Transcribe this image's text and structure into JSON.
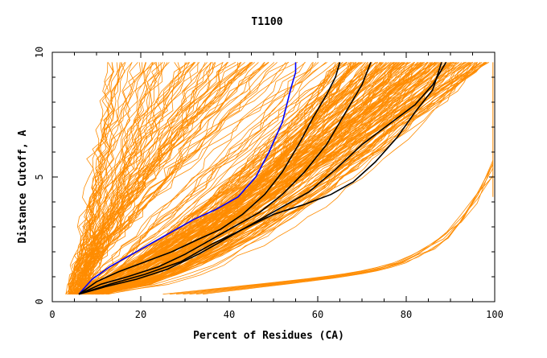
{
  "chart_data": {
    "type": "line",
    "title": "T1100",
    "xlabel": "Percent of Residues (CA)",
    "ylabel": "Distance Cutoff, A",
    "xlim": [
      0,
      100
    ],
    "ylim": [
      0,
      10
    ],
    "x_ticks": [
      0,
      20,
      40,
      60,
      80,
      100
    ],
    "y_ticks": [
      0,
      5,
      10
    ],
    "x_tick_labels": [
      "0",
      "20",
      "40",
      "60",
      "80",
      "100"
    ],
    "y_tick_labels": [
      "0",
      "5",
      "10"
    ],
    "grid": false,
    "legend": "none",
    "colors": {
      "orange": "#ff8c00",
      "blue": "#0000ff",
      "black": "#000000"
    },
    "series": [
      {
        "color": "blue",
        "points": [
          [
            6,
            0.3
          ],
          [
            9,
            0.9
          ],
          [
            13,
            1.4
          ],
          [
            18,
            1.9
          ],
          [
            23,
            2.4
          ],
          [
            28,
            2.9
          ],
          [
            32,
            3.3
          ],
          [
            37,
            3.7
          ],
          [
            42,
            4.2
          ],
          [
            46,
            5.0
          ],
          [
            49,
            6.0
          ],
          [
            52,
            7.2
          ],
          [
            54,
            8.6
          ],
          [
            55,
            9.2
          ],
          [
            55,
            9.6
          ]
        ]
      },
      {
        "color": "black",
        "points": [
          [
            6,
            0.3
          ],
          [
            10,
            0.8
          ],
          [
            15,
            1.2
          ],
          [
            21,
            1.6
          ],
          [
            27,
            2.0
          ],
          [
            33,
            2.5
          ],
          [
            38,
            2.9
          ],
          [
            43,
            3.5
          ],
          [
            48,
            4.3
          ],
          [
            52,
            5.2
          ],
          [
            56,
            6.4
          ],
          [
            59,
            7.4
          ],
          [
            62,
            8.3
          ],
          [
            64,
            9.0
          ],
          [
            65,
            9.6
          ]
        ]
      },
      {
        "color": "black",
        "points": [
          [
            6,
            0.3
          ],
          [
            11,
            0.7
          ],
          [
            17,
            1.0
          ],
          [
            24,
            1.4
          ],
          [
            30,
            1.9
          ],
          [
            36,
            2.5
          ],
          [
            41,
            3.0
          ],
          [
            47,
            3.6
          ],
          [
            52,
            4.3
          ],
          [
            57,
            5.2
          ],
          [
            62,
            6.3
          ],
          [
            66,
            7.5
          ],
          [
            70,
            8.7
          ],
          [
            72,
            9.6
          ]
        ]
      },
      {
        "color": "black",
        "points": [
          [
            6,
            0.3
          ],
          [
            12,
            0.6
          ],
          [
            19,
            0.9
          ],
          [
            26,
            1.3
          ],
          [
            33,
            1.9
          ],
          [
            40,
            2.6
          ],
          [
            46,
            3.2
          ],
          [
            52,
            3.8
          ],
          [
            58,
            4.4
          ],
          [
            64,
            5.3
          ],
          [
            70,
            6.3
          ],
          [
            76,
            7.1
          ],
          [
            82,
            7.9
          ],
          [
            86,
            8.7
          ],
          [
            89,
            9.6
          ]
        ]
      },
      {
        "color": "black",
        "points": [
          [
            6,
            0.3
          ],
          [
            13,
            0.7
          ],
          [
            21,
            1.1
          ],
          [
            29,
            1.6
          ],
          [
            36,
            2.3
          ],
          [
            43,
            2.9
          ],
          [
            50,
            3.5
          ],
          [
            57,
            3.9
          ],
          [
            63,
            4.3
          ],
          [
            68,
            4.8
          ],
          [
            73,
            5.6
          ],
          [
            78,
            6.6
          ],
          [
            82,
            7.6
          ],
          [
            86,
            8.5
          ],
          [
            88,
            9.6
          ]
        ]
      }
    ]
  }
}
